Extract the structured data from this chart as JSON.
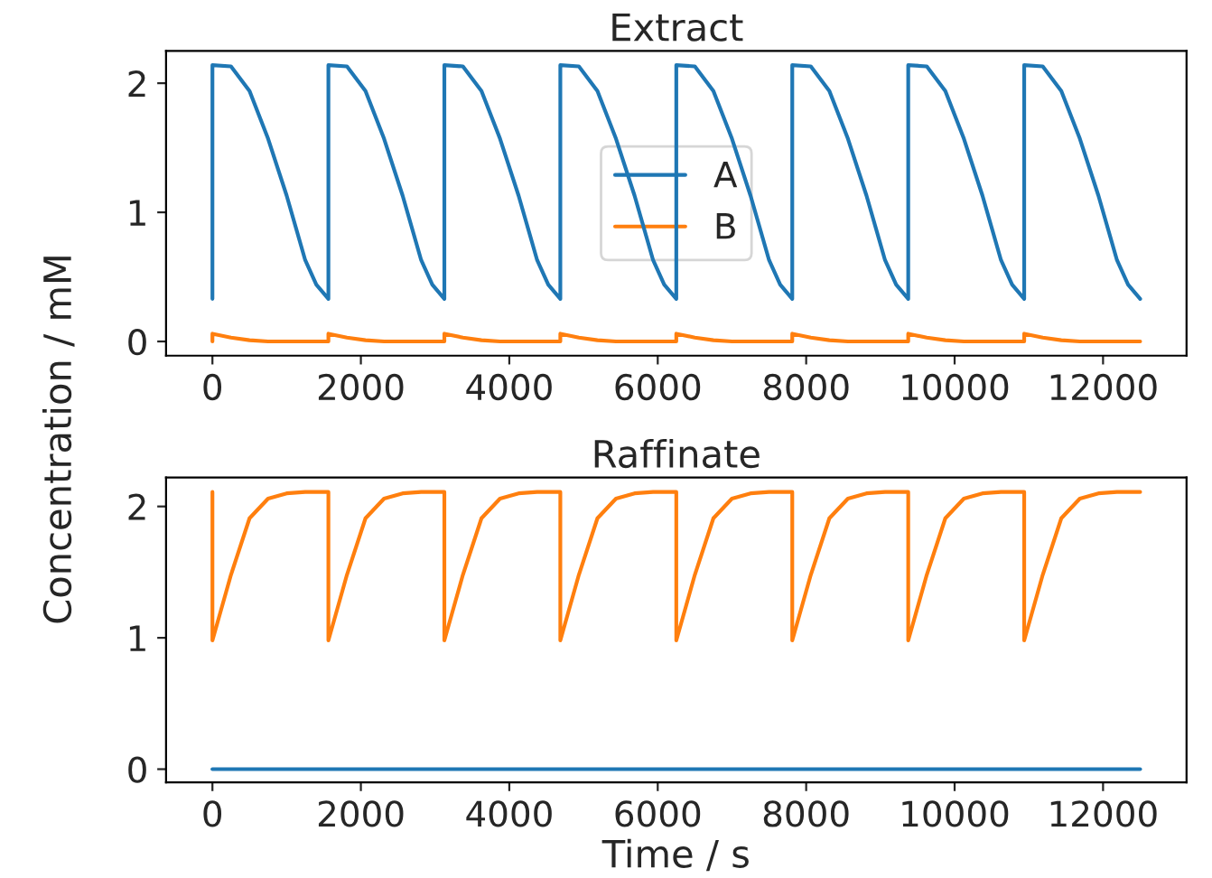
{
  "chart_data": [
    {
      "type": "line",
      "title": "Extract",
      "ylabel": "Concentration / mM",
      "x": [
        0,
        0,
        250,
        500,
        750,
        1000,
        1250,
        1400,
        1562.5,
        1562.5,
        1812.5,
        2062.5,
        2312.5,
        2562.5,
        2812.5,
        2962.5,
        3125,
        3125,
        3375,
        3625,
        3875,
        4125,
        4375,
        4525,
        4687.5,
        4687.5,
        4937.5,
        5187.5,
        5437.5,
        5687.5,
        5937.5,
        6087.5,
        6250,
        6250,
        6500,
        6750,
        7000,
        7250,
        7500,
        7650,
        7812.5,
        7812.5,
        8062.5,
        8312.5,
        8562.5,
        8812.5,
        9062.5,
        9212.5,
        9375,
        9375,
        9625,
        9875,
        10125,
        10375,
        10625,
        10775,
        10937.5,
        10937.5,
        11187.5,
        11437.5,
        11687.5,
        11937.5,
        12187.5,
        12337.5,
        12500
      ],
      "series": [
        {
          "name": "A",
          "color": "#1f77b4",
          "values": [
            0.33,
            2.14,
            2.13,
            1.94,
            1.57,
            1.13,
            0.63,
            0.44,
            0.33,
            2.14,
            2.13,
            1.94,
            1.57,
            1.13,
            0.63,
            0.44,
            0.33,
            2.14,
            2.13,
            1.94,
            1.57,
            1.13,
            0.63,
            0.44,
            0.33,
            2.14,
            2.13,
            1.94,
            1.57,
            1.13,
            0.63,
            0.44,
            0.33,
            2.14,
            2.13,
            1.94,
            1.57,
            1.13,
            0.63,
            0.44,
            0.33,
            2.14,
            2.13,
            1.94,
            1.57,
            1.13,
            0.63,
            0.44,
            0.33,
            2.14,
            2.13,
            1.94,
            1.57,
            1.13,
            0.63,
            0.44,
            0.33,
            2.14,
            2.13,
            1.94,
            1.57,
            1.13,
            0.63,
            0.44,
            0.33
          ]
        },
        {
          "name": "B",
          "color": "#ff7f0e",
          "values": [
            0.0,
            0.06,
            0.03,
            0.01,
            0.0,
            0.0,
            0.0,
            0.0,
            0.0,
            0.06,
            0.03,
            0.01,
            0.0,
            0.0,
            0.0,
            0.0,
            0.0,
            0.06,
            0.03,
            0.01,
            0.0,
            0.0,
            0.0,
            0.0,
            0.0,
            0.06,
            0.03,
            0.01,
            0.0,
            0.0,
            0.0,
            0.0,
            0.0,
            0.06,
            0.03,
            0.01,
            0.0,
            0.0,
            0.0,
            0.0,
            0.0,
            0.06,
            0.03,
            0.01,
            0.0,
            0.0,
            0.0,
            0.0,
            0.0,
            0.06,
            0.03,
            0.01,
            0.0,
            0.0,
            0.0,
            0.0,
            0.0,
            0.06,
            0.03,
            0.01,
            0.0,
            0.0,
            0.0,
            0.0,
            0.0
          ]
        }
      ],
      "xlim": [
        -625,
        13125
      ],
      "xticks": [
        0,
        2000,
        4000,
        6000,
        8000,
        10000,
        12000
      ],
      "ylim": [
        -0.11,
        2.25
      ],
      "yticks": [
        0,
        1,
        2
      ],
      "grid": false,
      "legend": "center"
    },
    {
      "type": "line",
      "title": "Raffinate",
      "xlabel": "Time / s",
      "x": [
        0,
        0,
        250,
        500,
        750,
        1000,
        1250,
        1400,
        1562.5,
        1562.5,
        1812.5,
        2062.5,
        2312.5,
        2562.5,
        2812.5,
        2962.5,
        3125,
        3125,
        3375,
        3625,
        3875,
        4125,
        4375,
        4525,
        4687.5,
        4687.5,
        4937.5,
        5187.5,
        5437.5,
        5687.5,
        5937.5,
        6087.5,
        6250,
        6250,
        6500,
        6750,
        7000,
        7250,
        7500,
        7650,
        7812.5,
        7812.5,
        8062.5,
        8312.5,
        8562.5,
        8812.5,
        9062.5,
        9212.5,
        9375,
        9375,
        9625,
        9875,
        10125,
        10375,
        10625,
        10775,
        10937.5,
        10937.5,
        11187.5,
        11437.5,
        11687.5,
        11937.5,
        12187.5,
        12337.5,
        12500
      ],
      "series": [
        {
          "color": "#1f77b4",
          "values": [
            0.0,
            0.0,
            0.0,
            0.0,
            0.0,
            0.0,
            0.0,
            0.0,
            0.0,
            0.0,
            0.0,
            0.0,
            0.0,
            0.0,
            0.0,
            0.0,
            0.0,
            0.0,
            0.0,
            0.0,
            0.0,
            0.0,
            0.0,
            0.0,
            0.0,
            0.0,
            0.0,
            0.0,
            0.0,
            0.0,
            0.0,
            0.0,
            0.0,
            0.0,
            0.0,
            0.0,
            0.0,
            0.0,
            0.0,
            0.0,
            0.0,
            0.0,
            0.0,
            0.0,
            0.0,
            0.0,
            0.0,
            0.0,
            0.0,
            0.0,
            0.0,
            0.0,
            0.0,
            0.0,
            0.0,
            0.0,
            0.0,
            0.0,
            0.0,
            0.0,
            0.0,
            0.0,
            0.0,
            0.0,
            0.0
          ]
        },
        {
          "color": "#ff7f0e",
          "values": [
            2.11,
            0.98,
            1.48,
            1.91,
            2.06,
            2.1,
            2.11,
            2.11,
            2.11,
            0.98,
            1.48,
            1.91,
            2.06,
            2.1,
            2.11,
            2.11,
            2.11,
            0.98,
            1.48,
            1.91,
            2.06,
            2.1,
            2.11,
            2.11,
            2.11,
            0.98,
            1.48,
            1.91,
            2.06,
            2.1,
            2.11,
            2.11,
            2.11,
            0.98,
            1.48,
            1.91,
            2.06,
            2.1,
            2.11,
            2.11,
            2.11,
            0.98,
            1.48,
            1.91,
            2.06,
            2.1,
            2.11,
            2.11,
            2.11,
            0.98,
            1.48,
            1.91,
            2.06,
            2.1,
            2.11,
            2.11,
            2.11,
            0.98,
            1.48,
            1.91,
            2.06,
            2.1,
            2.11,
            2.11,
            2.11
          ]
        }
      ],
      "xlim": [
        -625,
        13125
      ],
      "xticks": [
        0,
        2000,
        4000,
        6000,
        8000,
        10000,
        12000
      ],
      "ylim": [
        -0.1,
        2.22
      ],
      "yticks": [
        0,
        1,
        2
      ],
      "grid": false,
      "legend": false
    }
  ]
}
